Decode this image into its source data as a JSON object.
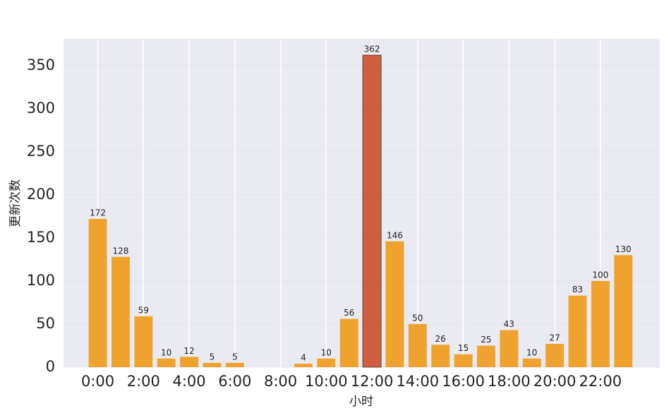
{
  "chart_data": {
    "type": "bar",
    "xlabel": "小时",
    "ylabel": "更新次数",
    "categories": [
      "0:00",
      null,
      "2:00",
      null,
      "4:00",
      null,
      "6:00",
      null,
      "8:00",
      null,
      "10:00",
      null,
      "12:00",
      null,
      "14:00",
      null,
      "16:00",
      null,
      "18:00",
      null,
      "20:00",
      null,
      "22:00",
      null
    ],
    "values": [
      172,
      128,
      59,
      10,
      12,
      5,
      5,
      null,
      null,
      4,
      10,
      56,
      362,
      146,
      50,
      26,
      15,
      25,
      43,
      10,
      27,
      83,
      100,
      130
    ],
    "colors": [
      "#efa22e",
      "#efa22e",
      "#efa22e",
      "#efa22e",
      "#efa22e",
      "#efa22e",
      "#efa22e",
      "#efa22e",
      "#efa22e",
      "#efa22e",
      "#efa22e",
      "#efa22e",
      "#cd5e40",
      "#efa22e",
      "#efa22e",
      "#efa22e",
      "#efa22e",
      "#efa22e",
      "#efa22e",
      "#efa22e",
      "#efa22e",
      "#efa22e",
      "#efa22e",
      "#efa22e"
    ],
    "ylim": [
      0,
      381
    ],
    "yticks": [
      0,
      50,
      100,
      150,
      200,
      250,
      300,
      350
    ],
    "grid": true
  }
}
